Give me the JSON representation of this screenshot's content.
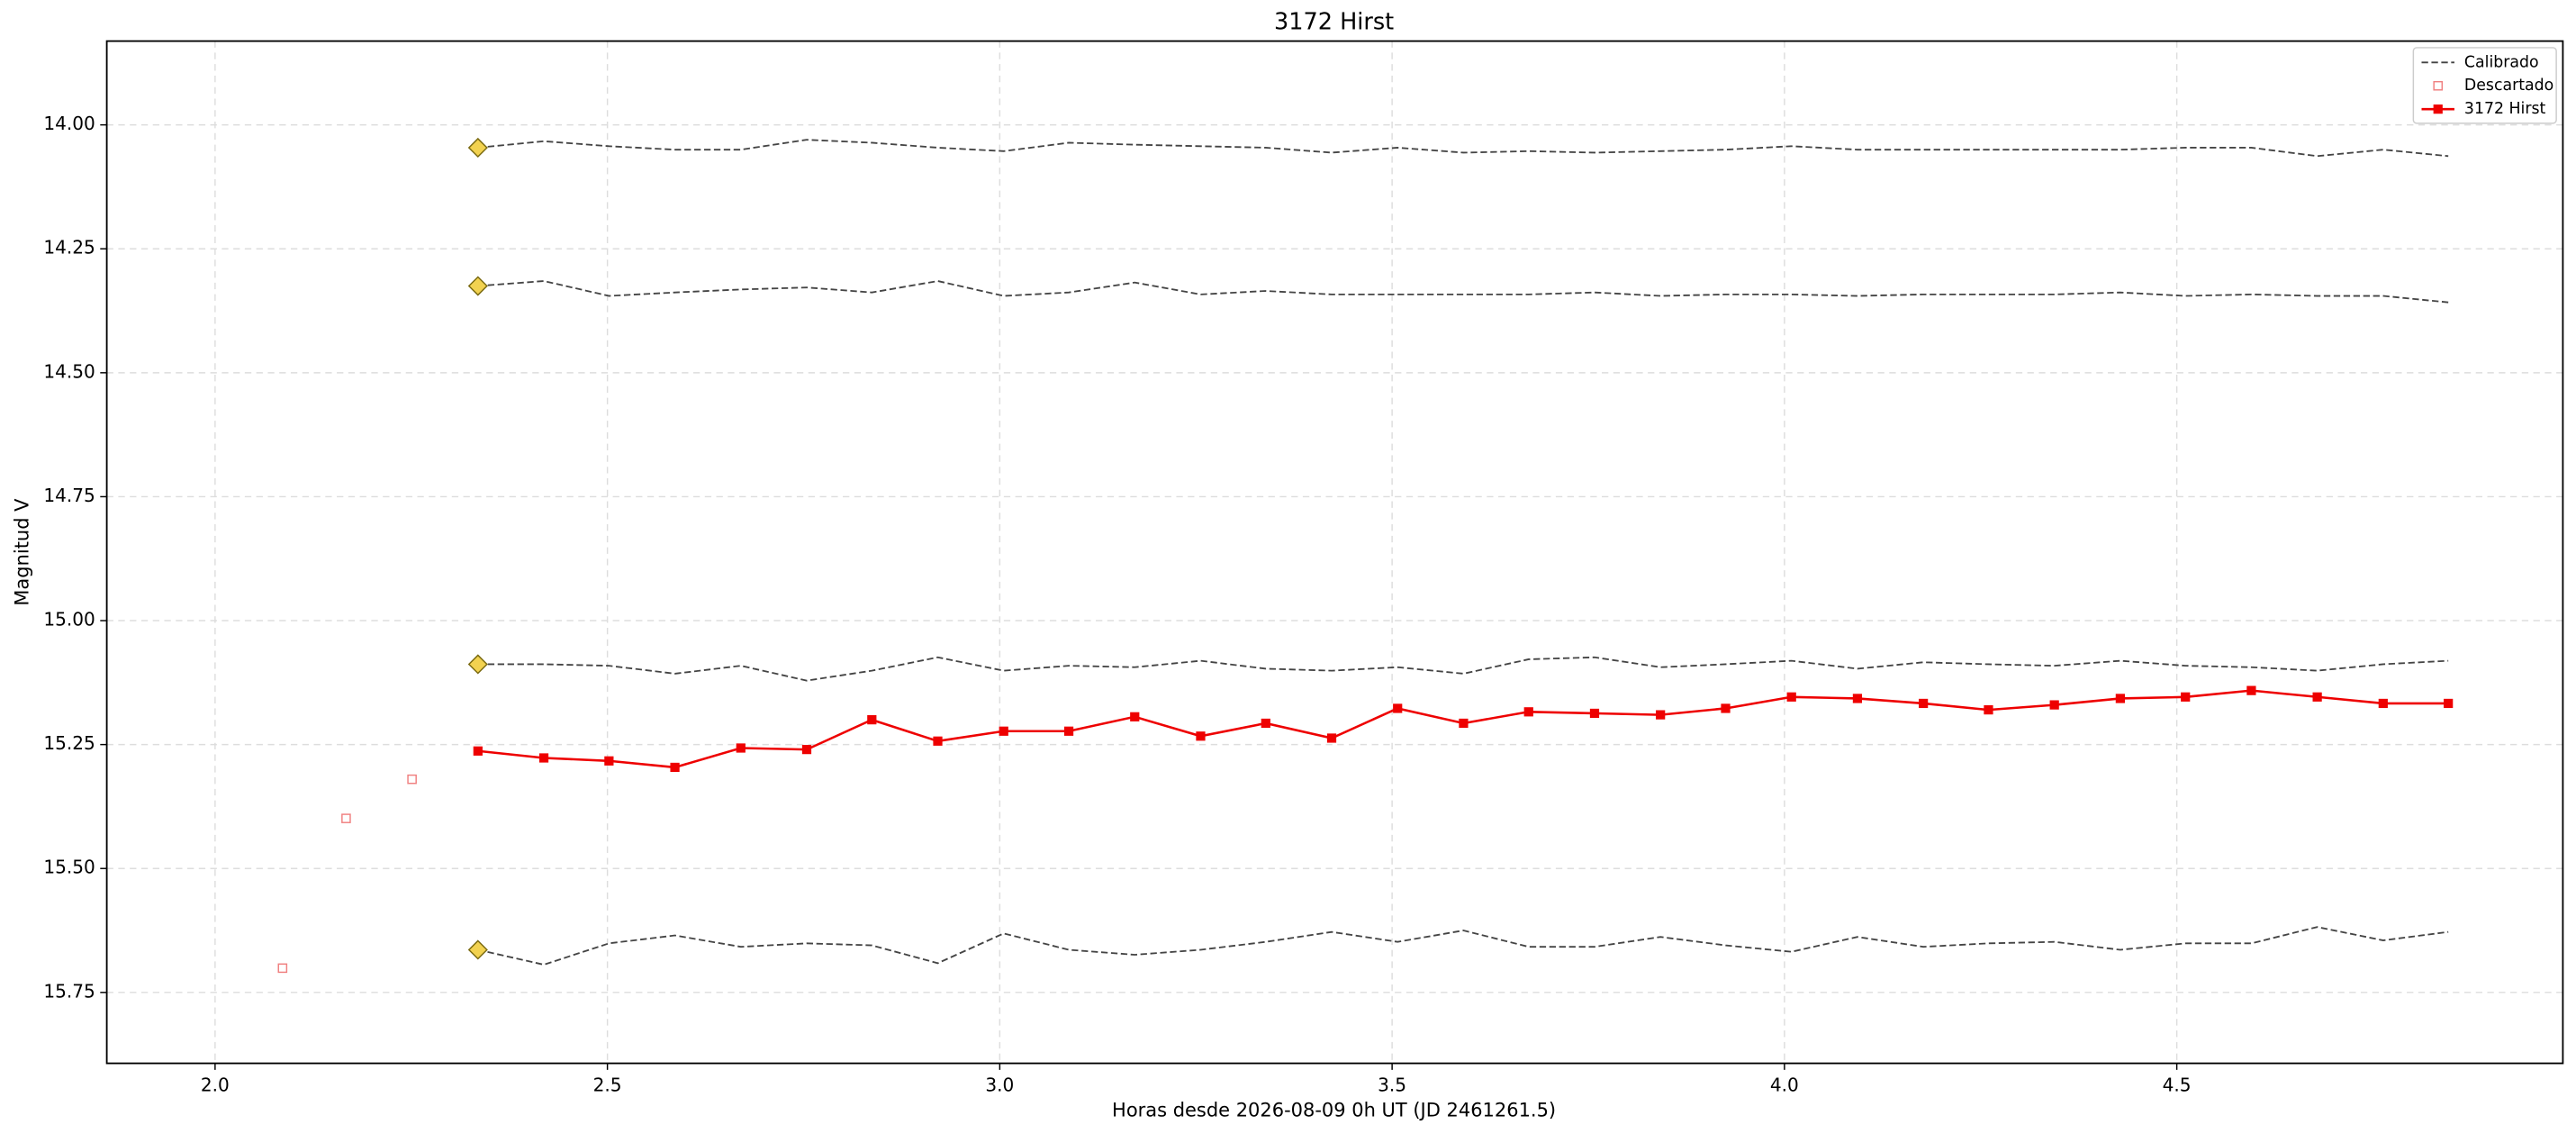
{
  "chart_data": {
    "type": "lightcurve",
    "title": "3172 Hirst",
    "x_label": "Horas desde 2026-08-09 0h UT (JD 2461261.5)",
    "y_label": "Magnitud V",
    "xlim": [
      1.862,
      4.992
    ],
    "ylim": [
      15.893,
      13.831
    ],
    "xticks": [
      {
        "value": 2,
        "label": "2.0"
      },
      {
        "value": 2.5,
        "label": "2.5"
      },
      {
        "value": 3,
        "label": "3.0"
      },
      {
        "value": 3.5,
        "label": "3.5"
      },
      {
        "value": 4,
        "label": "4.0"
      },
      {
        "value": 4.5,
        "label": "4.5"
      }
    ],
    "yticks": [
      {
        "value": 14,
        "label": "14.00"
      },
      14.25,
      {
        "value": 14.5,
        "label": "14.50"
      },
      14.75,
      {
        "value": 15,
        "label": "15.00"
      },
      15.25,
      {
        "value": 15.5,
        "label": "15.50"
      },
      15.75
    ],
    "grid": true,
    "legend": "upper right",
    "x": [
      2.335,
      2.419,
      2.502,
      2.586,
      2.67,
      2.754,
      2.837,
      2.921,
      3.005,
      3.088,
      3.172,
      3.256,
      3.339,
      3.423,
      3.507,
      3.591,
      3.674,
      3.758,
      3.842,
      3.925,
      4.009,
      4.093,
      4.177,
      4.26,
      4.344,
      4.428,
      4.511,
      4.595,
      4.679,
      4.763,
      4.846
    ],
    "calibrated": {
      "name": "Calibrado",
      "color": "#444444",
      "marker_color": "#f2d250",
      "series": [
        [
          14.046,
          14.033,
          14.043,
          14.05,
          14.05,
          14.03,
          14.036,
          14.046,
          14.053,
          14.036,
          14.04,
          14.043,
          14.046,
          14.056,
          14.046,
          14.056,
          14.053,
          14.056,
          14.053,
          14.05,
          14.043,
          14.05,
          14.05,
          14.05,
          14.05,
          14.05,
          14.046,
          14.046,
          14.063,
          14.05,
          14.063
        ],
        [
          14.325,
          14.315,
          14.345,
          14.338,
          14.332,
          14.328,
          14.338,
          14.315,
          14.345,
          14.338,
          14.318,
          14.342,
          14.335,
          14.342,
          14.342,
          14.342,
          14.342,
          14.338,
          14.345,
          14.342,
          14.342,
          14.345,
          14.342,
          14.342,
          14.342,
          14.338,
          14.345,
          14.342,
          14.345,
          14.345,
          14.358
        ],
        [
          15.088,
          15.088,
          15.091,
          15.107,
          15.091,
          15.121,
          15.101,
          15.074,
          15.101,
          15.091,
          15.094,
          15.081,
          15.097,
          15.101,
          15.094,
          15.107,
          15.078,
          15.074,
          15.094,
          15.088,
          15.081,
          15.097,
          15.084,
          15.088,
          15.091,
          15.081,
          15.091,
          15.094,
          15.101,
          15.088,
          15.081
        ],
        [
          15.664,
          15.694,
          15.651,
          15.635,
          15.658,
          15.651,
          15.655,
          15.691,
          15.631,
          15.664,
          15.674,
          15.664,
          15.648,
          15.628,
          15.648,
          15.625,
          15.658,
          15.658,
          15.638,
          15.655,
          15.668,
          15.638,
          15.658,
          15.651,
          15.648,
          15.664,
          15.651,
          15.651,
          15.618,
          15.645,
          15.628
        ]
      ]
    },
    "discarded": {
      "name": "Descartado",
      "color": "#f08080",
      "x": [
        2.086,
        2.167,
        2.251
      ],
      "values": [
        15.701,
        15.399,
        15.32
      ]
    },
    "target": {
      "name": "3172 Hirst",
      "color": "#ee0000",
      "values": [
        15.263,
        15.277,
        15.283,
        15.296,
        15.257,
        15.26,
        15.2,
        15.243,
        15.223,
        15.223,
        15.194,
        15.233,
        15.207,
        15.237,
        15.177,
        15.207,
        15.184,
        15.187,
        15.19,
        15.177,
        15.154,
        15.157,
        15.167,
        15.18,
        15.17,
        15.157,
        15.154,
        15.141,
        15.154,
        15.167,
        15.167
      ]
    }
  }
}
